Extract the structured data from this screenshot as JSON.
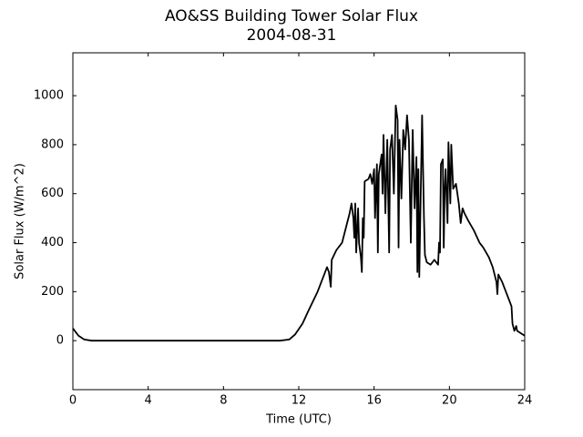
{
  "chart_data": {
    "type": "line",
    "title": "AO&SS Building Tower Solar Flux",
    "subtitle": "2004-08-31",
    "x_label": "Time (UTC)",
    "y_label": "Solar Flux (W/m^2)",
    "xlim": [
      0,
      24
    ],
    "ylim": [
      -200,
      1175
    ],
    "xticks": [
      0,
      4,
      8,
      12,
      16,
      20,
      24
    ],
    "yticks": [
      0,
      200,
      400,
      600,
      800,
      1000
    ],
    "grid": false,
    "x": [
      0,
      0.3,
      0.6,
      1,
      2,
      3,
      4,
      5,
      6,
      7,
      8,
      9,
      10,
      11,
      11.5,
      11.8,
      12.2,
      12.5,
      13,
      13.3,
      13.5,
      13.6,
      13.7,
      13.75,
      14,
      14.3,
      14.5,
      14.7,
      14.8,
      14.9,
      14.95,
      15.0,
      15.05,
      15.15,
      15.2,
      15.3,
      15.35,
      15.4,
      15.45,
      15.5,
      15.7,
      15.8,
      15.9,
      16.0,
      16.05,
      16.15,
      16.2,
      16.25,
      16.4,
      16.45,
      16.5,
      16.6,
      16.7,
      16.8,
      16.85,
      16.95,
      17.05,
      17.15,
      17.25,
      17.3,
      17.35,
      17.45,
      17.55,
      17.65,
      17.75,
      17.85,
      17.95,
      18.05,
      18.15,
      18.25,
      18.3,
      18.35,
      18.4,
      18.45,
      18.55,
      18.65,
      18.7,
      18.8,
      19.0,
      19.2,
      19.4,
      19.45,
      19.5,
      19.55,
      19.65,
      19.7,
      19.75,
      19.8,
      19.9,
      19.95,
      20.05,
      20.1,
      20.2,
      20.35,
      20.5,
      20.6,
      20.7,
      20.8,
      21.0,
      21.3,
      21.6,
      21.8,
      22.1,
      22.3,
      22.5,
      22.55,
      22.6,
      22.8,
      23.0,
      23.2,
      23.3,
      23.35,
      23.45,
      23.55,
      23.6,
      23.8,
      24
    ],
    "series": [
      {
        "name": "Solar Flux",
        "color": "#000000",
        "values": [
          50,
          20,
          5,
          0,
          0,
          0,
          0,
          0,
          0,
          0,
          0,
          0,
          0,
          0,
          5,
          25,
          70,
          120,
          200,
          260,
          300,
          280,
          220,
          330,
          370,
          400,
          460,
          520,
          560,
          500,
          420,
          560,
          360,
          540,
          400,
          340,
          280,
          500,
          420,
          650,
          660,
          680,
          640,
          700,
          500,
          720,
          360,
          680,
          760,
          600,
          840,
          520,
          820,
          360,
          780,
          840,
          600,
          960,
          900,
          380,
          820,
          580,
          860,
          780,
          920,
          820,
          400,
          860,
          540,
          750,
          280,
          700,
          260,
          480,
          920,
          500,
          350,
          320,
          310,
          330,
          310,
          400,
          360,
          720,
          740,
          380,
          620,
          700,
          480,
          810,
          560,
          800,
          620,
          640,
          560,
          480,
          540,
          520,
          490,
          450,
          400,
          380,
          340,
          300,
          240,
          190,
          270,
          240,
          200,
          160,
          140,
          70,
          40,
          60,
          40,
          30,
          20
        ]
      }
    ]
  }
}
